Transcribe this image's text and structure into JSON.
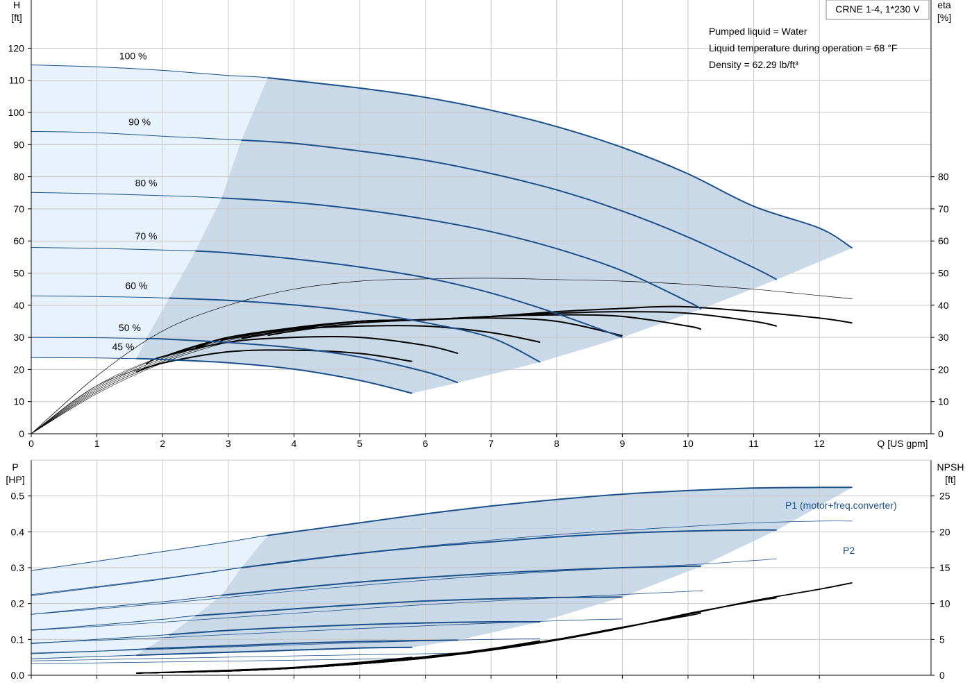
{
  "colors": {
    "grid": "#c8c8c8",
    "axis": "#000000",
    "curve_blue": "#1b4f8a",
    "fill_light": "#e8f2fc",
    "fill_dark": "#c9d9e8"
  },
  "chart_data": [
    {
      "type": "line",
      "name": "head-efficiency",
      "title": "CRNE 1-4, 1*230 V",
      "xlabel": "Q [US gpm]",
      "ylabel_top": "H",
      "ylabel_unit": "[ft]",
      "y2label_top": "eta",
      "y2label_unit": "[%]",
      "xlim": [
        0,
        13.7
      ],
      "ylim": [
        0,
        135
      ],
      "x_ticks": [
        0,
        1,
        2,
        3,
        4,
        5,
        6,
        7,
        8,
        9,
        10,
        11,
        12
      ],
      "y_ticks": [
        0,
        10,
        20,
        30,
        40,
        50,
        60,
        70,
        80,
        90,
        100,
        110,
        120
      ],
      "y2_ticks": [
        0,
        10,
        20,
        30,
        40,
        50,
        60,
        70,
        80
      ],
      "grid": true,
      "annotations": [
        "Pumped liquid = Water",
        "Liquid temperature during operation = 68 °F",
        "Density = 62.29 lb/ft³"
      ],
      "speed_labels": [
        {
          "text": "100 %",
          "x": 1.55,
          "y": 116.5
        },
        {
          "text": "90 %",
          "x": 1.65,
          "y": 96
        },
        {
          "text": "80 %",
          "x": 1.75,
          "y": 77
        },
        {
          "text": "70 %",
          "x": 1.75,
          "y": 60.5
        },
        {
          "text": "60 %",
          "x": 1.6,
          "y": 45
        },
        {
          "text": "50 %",
          "x": 1.5,
          "y": 32
        },
        {
          "text": "45 %",
          "x": 1.4,
          "y": 26
        }
      ],
      "head_curves": [
        {
          "speed": "100 %",
          "x": [
            0,
            1,
            2,
            3,
            3.6,
            5,
            6,
            7,
            8,
            9,
            10,
            11,
            12,
            12.5
          ],
          "y": [
            114.8,
            114.2,
            113.1,
            111.5,
            110.8,
            107.6,
            104.7,
            100.7,
            95.6,
            89.1,
            80.9,
            70.8,
            64,
            57.8
          ]
        },
        {
          "speed": "90 %",
          "x": [
            0,
            1,
            2,
            3.2,
            4,
            5,
            6,
            7,
            8,
            9,
            10,
            11,
            11.35
          ],
          "y": [
            94.1,
            93.7,
            92.6,
            91.4,
            90.4,
            88,
            85.1,
            81,
            75.9,
            69.3,
            61.2,
            51.7,
            48
          ]
        },
        {
          "speed": "80 %",
          "x": [
            0,
            1,
            2,
            2.9,
            4,
            5,
            6,
            7,
            8,
            9,
            10,
            10.2
          ],
          "y": [
            75.1,
            74.7,
            74.1,
            73.4,
            72,
            69.8,
            66.8,
            62.9,
            57.6,
            50.7,
            41.1,
            38.8
          ]
        },
        {
          "speed": "70 %",
          "x": [
            0,
            1,
            2,
            2.5,
            3,
            4,
            5,
            6,
            7,
            8,
            9
          ],
          "y": [
            58,
            57.7,
            57.2,
            56.9,
            56.3,
            54.4,
            51.9,
            48.6,
            43.8,
            37.4,
            30
          ]
        },
        {
          "speed": "60 %",
          "x": [
            0,
            1,
            2,
            3,
            4,
            5,
            6,
            7,
            7.75
          ],
          "y": [
            42.9,
            42.7,
            42.3,
            41.5,
            40.1,
            37.9,
            34.6,
            29.9,
            22.3
          ]
        },
        {
          "speed": "50 %",
          "x": [
            0,
            1,
            1.75,
            2,
            3,
            4,
            5,
            6,
            6.5
          ],
          "y": [
            30,
            29.9,
            29.6,
            29.5,
            28.4,
            26.7,
            23.9,
            19.3,
            15.9
          ]
        },
        {
          "speed": "45 %",
          "x": [
            0,
            1,
            1.6,
            2,
            3,
            4,
            5,
            5.8
          ],
          "y": [
            23.7,
            23.6,
            23.4,
            23.1,
            22.1,
            20.1,
            16.6,
            12.6
          ]
        }
      ],
      "efficiency_curves": [
        {
          "speed": "100 %",
          "x": [
            0,
            1,
            2,
            3,
            4,
            5,
            6,
            7,
            8,
            9,
            9.5,
            10,
            11,
            12,
            12.5
          ],
          "y": [
            0,
            12.5,
            22,
            28.5,
            32,
            34.5,
            35.5,
            36.5,
            38,
            39,
            39.5,
            39.5,
            38,
            36,
            34.5
          ]
        },
        {
          "speed": "90 %",
          "x": [
            0,
            1,
            2,
            3,
            4,
            5,
            6,
            7,
            8,
            9,
            10,
            11,
            11.35
          ],
          "y": [
            0,
            13,
            22.5,
            29,
            32.5,
            35,
            35.5,
            36.5,
            37.5,
            38,
            37.5,
            35,
            33.5
          ]
        },
        {
          "speed": "80 %",
          "x": [
            0,
            1,
            2,
            3,
            4,
            5,
            6,
            7,
            8,
            9,
            10,
            10.2
          ],
          "y": [
            0,
            13.5,
            23,
            29.5,
            33,
            35,
            35.5,
            36.5,
            37,
            36.5,
            33.5,
            32.5
          ]
        },
        {
          "speed": "70 %",
          "x": [
            0,
            1,
            2,
            3,
            4,
            5,
            6,
            7,
            8,
            9
          ],
          "y": [
            0,
            14,
            23.5,
            30,
            33,
            35,
            35.5,
            36,
            35,
            30.5
          ]
        },
        {
          "speed": "60 %",
          "x": [
            0,
            1,
            2,
            3,
            4,
            5,
            6,
            7,
            7.75
          ],
          "y": [
            0,
            14.5,
            24,
            30,
            32.5,
            33.5,
            33.5,
            31.5,
            28.5
          ]
        },
        {
          "speed": "50 %",
          "x": [
            0,
            1,
            2,
            3,
            4,
            5,
            6,
            6.5
          ],
          "y": [
            0,
            15,
            24,
            28.5,
            30,
            30,
            27.5,
            25
          ]
        },
        {
          "speed": "45 %",
          "x": [
            0,
            1,
            2,
            3,
            4,
            5,
            5.8
          ],
          "y": [
            0,
            15,
            22,
            25.5,
            26,
            25,
            22.5
          ]
        }
      ],
      "max_efficiency_envelope": {
        "x": [
          0,
          1,
          2,
          3,
          4,
          5,
          6,
          7,
          8,
          9,
          10,
          11,
          12,
          12.5
        ],
        "y": [
          0,
          18,
          32,
          40,
          45,
          47.5,
          48.2,
          48.4,
          48,
          47.5,
          46.5,
          45,
          43,
          42
        ]
      }
    },
    {
      "type": "line",
      "name": "power-npsh",
      "ylabel_top": "P",
      "ylabel_unit": "[HP]",
      "y2label_top": "NPSH",
      "y2label_unit": "[ft]",
      "xlim": [
        0,
        13.7
      ],
      "ylim": [
        0,
        0.6
      ],
      "y_ticks": [
        0.0,
        0.1,
        0.2,
        0.3,
        0.4,
        0.5
      ],
      "y_tick_labels": [
        "0.0",
        "0.1",
        "0.2",
        "0.3",
        "0.4",
        "0.5"
      ],
      "y2lim": [
        0,
        30
      ],
      "y2_ticks": [
        0,
        5,
        10,
        15,
        20,
        25
      ],
      "grid": true,
      "series_labels": [
        "P1 (motor+freq.converter)",
        "P2"
      ],
      "p1_curves": [
        {
          "speed": "100 %",
          "x": [
            0,
            1,
            2,
            3,
            3.6,
            5,
            6,
            7,
            8,
            9,
            10,
            11,
            12,
            12.5
          ],
          "y": [
            0.292,
            0.318,
            0.345,
            0.372,
            0.39,
            0.425,
            0.45,
            0.472,
            0.49,
            0.505,
            0.515,
            0.522,
            0.524,
            0.524
          ]
        },
        {
          "speed": "90 %",
          "x": [
            0,
            1,
            2,
            3.2,
            4,
            5,
            6,
            7,
            8,
            9,
            10,
            11,
            11.35
          ],
          "y": [
            0.222,
            0.245,
            0.268,
            0.3,
            0.318,
            0.34,
            0.358,
            0.372,
            0.386,
            0.396,
            0.402,
            0.405,
            0.405
          ]
        },
        {
          "speed": "80 %",
          "x": [
            0,
            1,
            2,
            2.9,
            4,
            5,
            6,
            7,
            8,
            9,
            10,
            10.2
          ],
          "y": [
            0.17,
            0.188,
            0.205,
            0.223,
            0.243,
            0.26,
            0.273,
            0.284,
            0.293,
            0.3,
            0.304,
            0.304
          ]
        },
        {
          "speed": "70 %",
          "x": [
            0,
            1,
            2,
            2.5,
            4,
            5,
            6,
            7,
            8,
            9
          ],
          "y": [
            0.126,
            0.14,
            0.156,
            0.166,
            0.185,
            0.197,
            0.207,
            0.213,
            0.217,
            0.218
          ]
        },
        {
          "speed": "60 %",
          "x": [
            0,
            1,
            2,
            3,
            4,
            5,
            6,
            7,
            7.75
          ],
          "y": [
            0.088,
            0.1,
            0.112,
            0.125,
            0.134,
            0.141,
            0.146,
            0.149,
            0.149
          ]
        },
        {
          "speed": "50 %",
          "x": [
            0,
            1,
            1.75,
            3,
            4,
            5,
            6,
            6.5
          ],
          "y": [
            0.06,
            0.067,
            0.074,
            0.082,
            0.089,
            0.094,
            0.097,
            0.098
          ]
        },
        {
          "speed": "45 %",
          "x": [
            0,
            1,
            1.6,
            3,
            4,
            5,
            5.8
          ],
          "y": [
            0.046,
            0.052,
            0.056,
            0.064,
            0.07,
            0.076,
            0.078
          ]
        }
      ],
      "p2_curves": [
        {
          "speed": "100 %",
          "x": [
            0,
            2,
            4,
            6,
            8,
            10,
            11,
            12,
            12.5
          ],
          "y": [
            0.225,
            0.27,
            0.32,
            0.36,
            0.392,
            0.415,
            0.425,
            0.43,
            0.43
          ]
        },
        {
          "speed": "90 %",
          "x": [
            0,
            2,
            4,
            6,
            8,
            10,
            11,
            11.35
          ],
          "y": [
            0.17,
            0.2,
            0.235,
            0.265,
            0.29,
            0.308,
            0.32,
            0.325
          ]
        },
        {
          "speed": "80 %",
          "x": [
            0,
            2,
            4,
            6,
            8,
            10,
            10.2
          ],
          "y": [
            0.125,
            0.148,
            0.173,
            0.197,
            0.216,
            0.234,
            0.235
          ]
        },
        {
          "speed": "70 %",
          "x": [
            0,
            2,
            4,
            6,
            8,
            9
          ],
          "y": [
            0.09,
            0.105,
            0.122,
            0.138,
            0.152,
            0.157
          ]
        },
        {
          "speed": "60 %",
          "x": [
            0,
            2,
            4,
            6,
            7,
            7.75
          ],
          "y": [
            0.062,
            0.073,
            0.085,
            0.096,
            0.1,
            0.102
          ]
        },
        {
          "speed": "50 %",
          "x": [
            0,
            2,
            4,
            6,
            6.5
          ],
          "y": [
            0.04,
            0.047,
            0.054,
            0.06,
            0.062
          ]
        },
        {
          "speed": "45 %",
          "x": [
            0,
            2,
            4,
            5,
            5.8
          ],
          "y": [
            0.032,
            0.037,
            0.042,
            0.045,
            0.047
          ]
        }
      ],
      "npsh_curves": [
        {
          "speed": "100 %",
          "x": [
            1.6,
            3,
            4,
            5,
            6,
            7,
            8,
            9,
            10,
            11,
            12,
            12.5
          ],
          "y": [
            0.3,
            0.6,
            1,
            1.6,
            2.4,
            3.5,
            4.9,
            6.6,
            8.5,
            10.4,
            12,
            12.9
          ]
        },
        {
          "speed": "90 %",
          "x": [
            1.6,
            3,
            4,
            5,
            6,
            7,
            8,
            9,
            10,
            11,
            11.35
          ],
          "y": [
            0.3,
            0.6,
            1,
            1.6,
            2.4,
            3.5,
            4.9,
            6.6,
            8.6,
            10.3,
            10.8
          ]
        },
        {
          "speed": "80 %",
          "x": [
            1.6,
            3,
            4,
            5,
            6,
            7,
            8,
            9,
            10,
            10.2
          ],
          "y": [
            0.3,
            0.6,
            1,
            1.6,
            2.4,
            3.6,
            5,
            6.7,
            8.3,
            8.7
          ]
        },
        {
          "speed": "70 %",
          "x": [
            1.6,
            3,
            4,
            5,
            6,
            7,
            8,
            9
          ],
          "y": [
            0.3,
            0.6,
            1,
            1.6,
            2.4,
            3.6,
            5,
            6.6
          ]
        },
        {
          "speed": "60 %",
          "x": [
            1.6,
            3,
            4,
            5,
            6,
            7,
            7.75
          ],
          "y": [
            0.3,
            0.6,
            1,
            1.6,
            2.5,
            3.7,
            4.8
          ]
        },
        {
          "speed": "50 %",
          "x": [
            1.6,
            3,
            4,
            5,
            6,
            6.5
          ],
          "y": [
            0.3,
            0.6,
            1,
            1.7,
            2.6,
            3.1
          ]
        },
        {
          "speed": "45 %",
          "x": [
            1.6,
            3,
            4,
            5,
            5.8
          ],
          "y": [
            0.3,
            0.7,
            1.1,
            1.8,
            2.5
          ]
        }
      ]
    }
  ]
}
